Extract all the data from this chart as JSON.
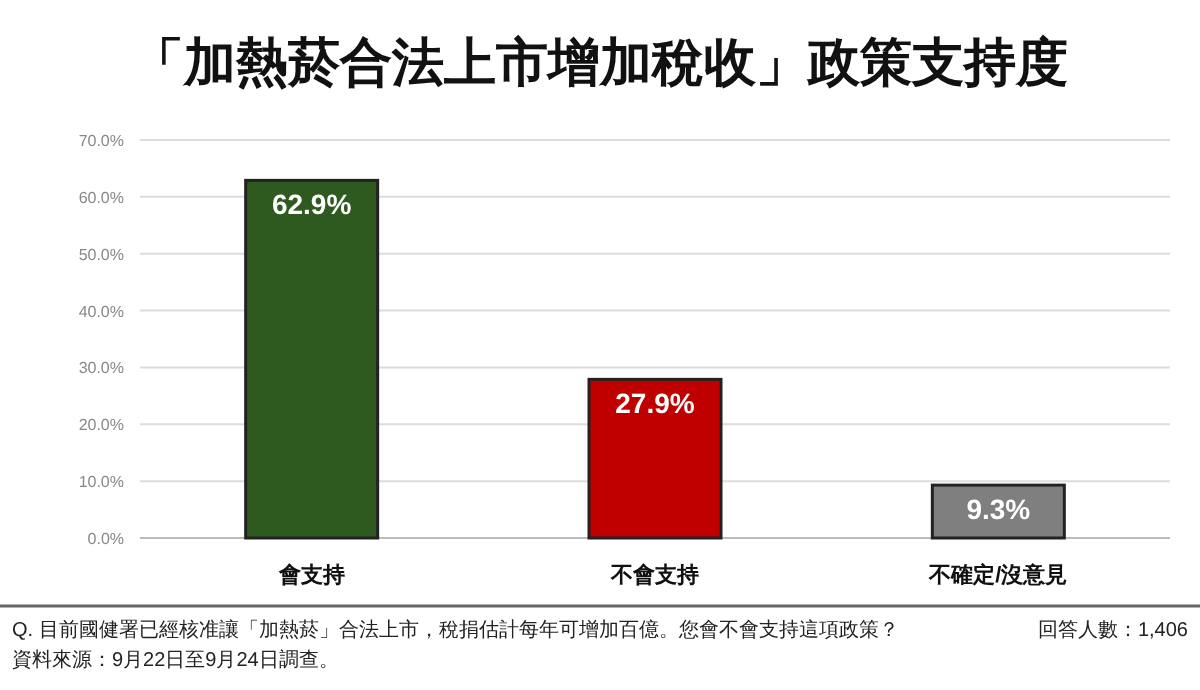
{
  "chart_data": {
    "type": "bar",
    "title": "「加熱菸合法上市增加稅收」政策支持度",
    "categories": [
      "會支持",
      "不會支持",
      "不確定/沒意見"
    ],
    "values": [
      62.9,
      27.9,
      9.3
    ],
    "colors": [
      "#2e5a1f",
      "#c00000",
      "#7f7f7f"
    ],
    "value_labels": [
      "62.9%",
      "27.9%",
      "9.3%"
    ],
    "ylim": [
      0,
      70
    ],
    "yticks": [
      {
        "value": 0,
        "label": "0.0%"
      },
      {
        "value": 10,
        "label": "10.0%"
      },
      {
        "value": 20,
        "label": "20.0%"
      },
      {
        "value": 30,
        "label": "30.0%"
      },
      {
        "value": 40,
        "label": "40.0%"
      },
      {
        "value": 50,
        "label": "50.0%"
      },
      {
        "value": 60,
        "label": "60.0%"
      },
      {
        "value": 70,
        "label": "70.0%"
      }
    ],
    "grid": "y",
    "annotations": [
      "Q. 目前國健署已經核准讓「加熱菸」合法上市，稅捐估計每年可增加百億。您會不會支持這項政策？",
      "回答人數：1,406",
      "資料來源：9月22日至9月24日調查。"
    ]
  }
}
